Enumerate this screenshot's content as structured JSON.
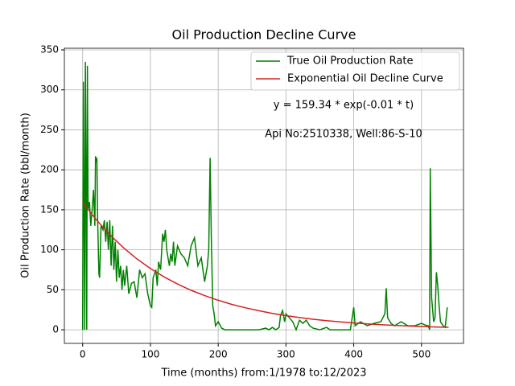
{
  "chart_data": {
    "type": "line",
    "title": "Oil Production Decline Curve",
    "xlabel": "Time (months) from:1/1978 to:12/2023",
    "ylabel": "Oil Production Rate (bbl/month)",
    "annotations": [
      "y = 159.34 * exp(-0.01 * t)",
      "Api No:2510338, Well:86-S-10"
    ],
    "xlim": [
      -27,
      562
    ],
    "ylim": [
      -17,
      352
    ],
    "xticks": [
      0,
      100,
      200,
      300,
      400,
      500
    ],
    "yticks": [
      0,
      50,
      100,
      150,
      200,
      250,
      300,
      350
    ],
    "grid": true,
    "legend": "upper right",
    "series": [
      {
        "name": "True Oil Production Rate",
        "color": "#008000",
        "x": [
          0,
          1,
          2,
          3,
          4,
          5,
          6,
          7,
          8,
          10,
          12,
          14,
          16,
          18,
          19,
          20,
          21,
          22,
          24,
          25,
          27,
          30,
          32,
          34,
          36,
          38,
          40,
          42,
          44,
          46,
          48,
          50,
          52,
          54,
          56,
          58,
          60,
          62,
          65,
          68,
          72,
          76,
          80,
          84,
          88,
          92,
          96,
          100,
          102,
          104,
          108,
          110,
          112,
          115,
          118,
          120,
          122,
          124,
          126,
          128,
          130,
          132,
          134,
          136,
          140,
          145,
          150,
          155,
          160,
          165,
          170,
          175,
          180,
          184,
          186,
          188,
          190,
          192,
          194,
          196,
          200,
          205,
          210,
          240,
          260,
          270,
          275,
          280,
          285,
          290,
          292,
          295,
          298,
          300,
          305,
          310,
          315,
          320,
          325,
          330,
          335,
          340,
          350,
          360,
          365,
          380,
          395,
          400,
          402,
          410,
          420,
          430,
          440,
          446,
          448,
          450,
          455,
          460,
          470,
          480,
          490,
          500,
          505,
          510,
          512,
          513,
          515,
          518,
          520,
          522,
          524,
          526,
          528,
          532,
          535,
          538
        ],
        "values": [
          0,
          310,
          150,
          0,
          335,
          200,
          0,
          330,
          150,
          160,
          130,
          150,
          175,
          130,
          217,
          210,
          215,
          140,
          70,
          65,
          130,
          125,
          137,
          110,
          135,
          100,
          137,
          80,
          130,
          75,
          110,
          60,
          100,
          65,
          80,
          50,
          75,
          55,
          80,
          45,
          58,
          60,
          40,
          75,
          65,
          70,
          45,
          30,
          28,
          65,
          75,
          55,
          85,
          75,
          120,
          110,
          125,
          100,
          90,
          80,
          95,
          85,
          110,
          80,
          105,
          95,
          90,
          80,
          105,
          115,
          80,
          90,
          60,
          80,
          100,
          215,
          110,
          30,
          20,
          5,
          10,
          2,
          0,
          0,
          0,
          2,
          0,
          3,
          0,
          3,
          18,
          24,
          10,
          20,
          15,
          10,
          0,
          12,
          8,
          12,
          5,
          2,
          0,
          3,
          0,
          0,
          0,
          28,
          5,
          10,
          5,
          8,
          10,
          20,
          52,
          15,
          8,
          5,
          10,
          5,
          5,
          8,
          6,
          5,
          0,
          202,
          40,
          10,
          15,
          72,
          55,
          30,
          10,
          5,
          3,
          28
        ]
      },
      {
        "name": "Exponential Oil Decline Curve",
        "color": "#d62020",
        "x": [
          0,
          20,
          40,
          60,
          80,
          100,
          120,
          140,
          160,
          180,
          200,
          220,
          240,
          260,
          280,
          300,
          320,
          340,
          360,
          380,
          400,
          420,
          440,
          460,
          480,
          500,
          520,
          540
        ],
        "values": [
          159.3,
          137.6,
          118.9,
          102.7,
          88.7,
          76.6,
          66.2,
          57.2,
          49.4,
          42.7,
          36.9,
          31.8,
          27.5,
          23.8,
          20.5,
          17.7,
          15.3,
          13.2,
          11.4,
          9.9,
          8.5,
          7.4,
          6.4,
          5.5,
          4.7,
          4.1,
          3.5,
          3.1
        ]
      }
    ]
  }
}
